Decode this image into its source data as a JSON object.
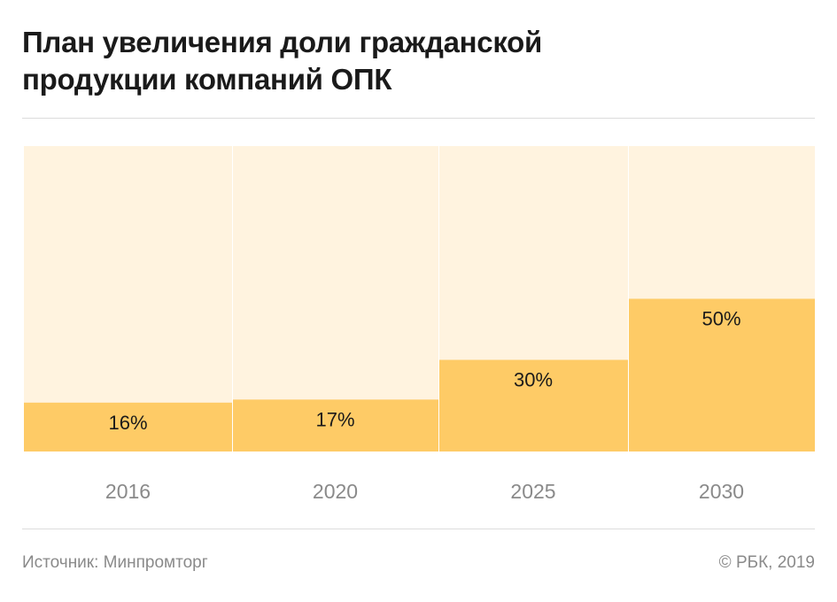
{
  "title_line1": "План увеличения доли гражданской",
  "title_line2": "продукции компаний ОПК",
  "source": "Источник: Минпромторг",
  "copyright": "© РБК, 2019",
  "colors": {
    "background_bar": "#fff3df",
    "value_bar": "#fecb66",
    "value_text": "#1a1a1a",
    "axis_text": "#8a8a8a"
  },
  "chart_data": {
    "type": "bar",
    "categories": [
      "2016",
      "2020",
      "2025",
      "2030"
    ],
    "values": [
      16,
      17,
      30,
      50
    ],
    "labels": [
      "16%",
      "17%",
      "30%",
      "50%"
    ],
    "ylim": [
      0,
      100
    ],
    "unit": "%",
    "grid": false,
    "legend": "none"
  }
}
